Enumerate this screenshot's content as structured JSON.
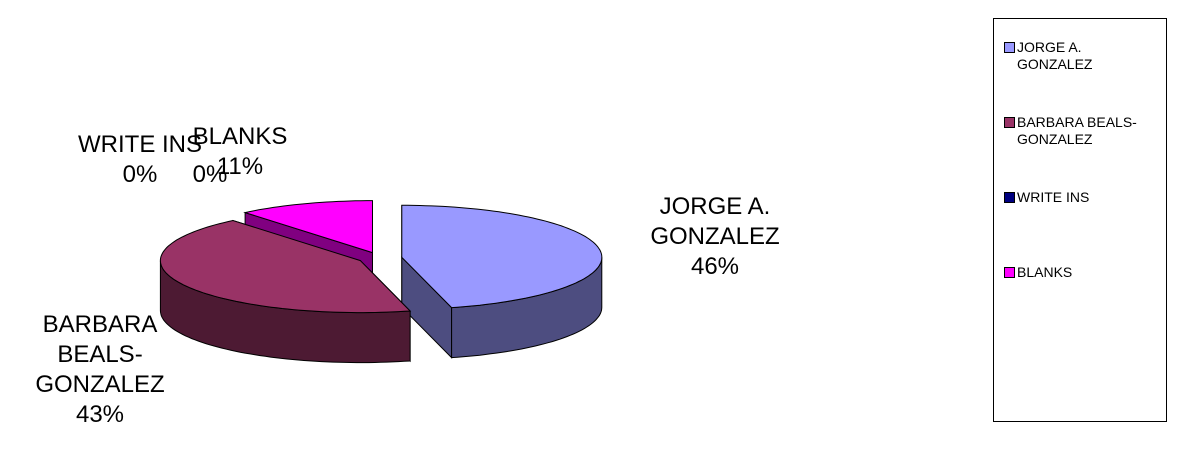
{
  "chart_data": {
    "type": "pie3d",
    "categories": [
      "JORGE A. GONZALEZ",
      "BARBARA BEALS-GONZALEZ",
      "WRITE INS",
      null,
      "BLANKS"
    ],
    "values": [
      46,
      43,
      0,
      0,
      11
    ],
    "value_labels": [
      "46%",
      "43%",
      "0%",
      "0%",
      "11%"
    ],
    "colors": [
      "#9999ff",
      "#993366",
      "#000080",
      "#999966",
      "#ff00ff"
    ],
    "legend": "right"
  }
}
